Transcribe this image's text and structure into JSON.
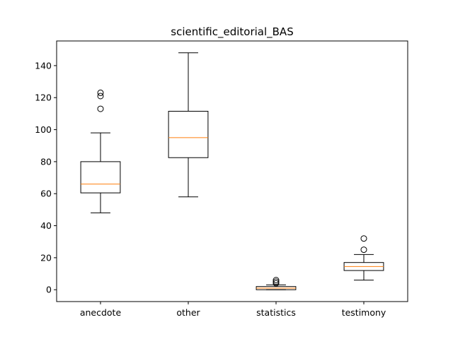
{
  "chart_data": {
    "type": "boxplot",
    "title": "scientific_editorial_BAS",
    "xlabel": "",
    "ylabel": "",
    "categories": [
      "anecdote",
      "other",
      "statistics",
      "testimony"
    ],
    "boxes": [
      {
        "category": "anecdote",
        "whisker_low": 48,
        "q1": 60.5,
        "median": 66,
        "q3": 80,
        "whisker_high": 98,
        "outliers": [
          113,
          121,
          123
        ]
      },
      {
        "category": "other",
        "whisker_low": 58,
        "q1": 82.5,
        "median": 95,
        "q3": 111.5,
        "whisker_high": 148,
        "outliers": []
      },
      {
        "category": "statistics",
        "whisker_low": 0,
        "q1": 0,
        "median": 1,
        "q3": 2,
        "whisker_high": 3,
        "outliers": [
          4,
          5,
          6
        ]
      },
      {
        "category": "testimony",
        "whisker_low": 6,
        "q1": 12,
        "median": 14.5,
        "q3": 17,
        "whisker_high": 22,
        "outliers": [
          25,
          32
        ]
      }
    ],
    "yticks": [
      0,
      20,
      40,
      60,
      80,
      100,
      120,
      140
    ],
    "ylim": [
      -7.4,
      155.4
    ],
    "grid": false,
    "colors": {
      "box": "#000000",
      "median": "#ff7f0e",
      "outlier": "#000000"
    }
  }
}
